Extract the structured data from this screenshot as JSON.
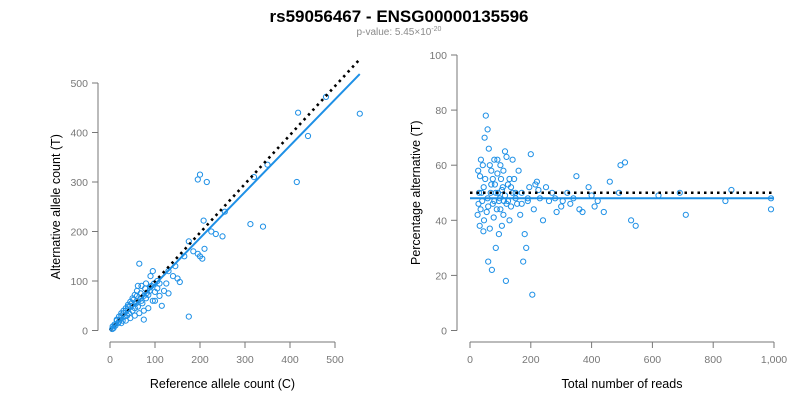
{
  "title": "rs59056467 - ENSG00000135596",
  "subtitle": {
    "prefix": "p-value: 5.45×10",
    "exponent": "-20"
  },
  "colors": {
    "points": "#1E90E6",
    "fit_line": "#1E90E6",
    "reference_line": "#000000",
    "axis": "#777777"
  },
  "chart_data": [
    {
      "type": "scatter",
      "xlabel": "Reference allele count (C)",
      "ylabel": "Alternative allele count (T)",
      "xlim": [
        0,
        560
      ],
      "ylim": [
        0,
        500
      ],
      "xticks": [
        0,
        100,
        200,
        300,
        400,
        500
      ],
      "yticks": [
        0,
        100,
        200,
        300,
        400,
        500
      ],
      "fit_line": {
        "from": [
          0,
          0
        ],
        "to": [
          555,
          518
        ],
        "style": "solid"
      },
      "reference_line": {
        "from": [
          0,
          0
        ],
        "to": [
          555,
          548
        ],
        "style": "dotted"
      },
      "points": [
        [
          555,
          438
        ],
        [
          480,
          472
        ],
        [
          440,
          393
        ],
        [
          418,
          440
        ],
        [
          415,
          300
        ],
        [
          350,
          335
        ],
        [
          340,
          210
        ],
        [
          320,
          310
        ],
        [
          312,
          215
        ],
        [
          255,
          240
        ],
        [
          250,
          190
        ],
        [
          215,
          300
        ],
        [
          208,
          222
        ],
        [
          200,
          315
        ],
        [
          195,
          305
        ],
        [
          210,
          165
        ],
        [
          205,
          145
        ],
        [
          200,
          150
        ],
        [
          195,
          155
        ],
        [
          235,
          195
        ],
        [
          225,
          200
        ],
        [
          185,
          160
        ],
        [
          175,
          180
        ],
        [
          165,
          150
        ],
        [
          175,
          28
        ],
        [
          155,
          98
        ],
        [
          150,
          105
        ],
        [
          145,
          130
        ],
        [
          140,
          110
        ],
        [
          130,
          120
        ],
        [
          125,
          95
        ],
        [
          115,
          50
        ],
        [
          110,
          70
        ],
        [
          105,
          85
        ],
        [
          100,
          78
        ],
        [
          95,
          60
        ],
        [
          90,
          88
        ],
        [
          85,
          72
        ],
        [
          80,
          65
        ],
        [
          78,
          85
        ],
        [
          75,
          22
        ],
        [
          72,
          55
        ],
        [
          70,
          60
        ],
        [
          68,
          75
        ],
        [
          65,
          135
        ],
        [
          62,
          48
        ],
        [
          60,
          70
        ],
        [
          58,
          55
        ],
        [
          55,
          45
        ],
        [
          52,
          62
        ],
        [
          50,
          40
        ],
        [
          48,
          55
        ],
        [
          45,
          50
        ],
        [
          42,
          35
        ],
        [
          40,
          48
        ],
        [
          38,
          30
        ],
        [
          35,
          40
        ],
        [
          32,
          28
        ],
        [
          30,
          35
        ],
        [
          28,
          20
        ],
        [
          25,
          30
        ],
        [
          22,
          22
        ],
        [
          20,
          18
        ],
        [
          18,
          15
        ],
        [
          15,
          20
        ],
        [
          12,
          10
        ],
        [
          10,
          12
        ],
        [
          8,
          5
        ],
        [
          6,
          8
        ],
        [
          5,
          3
        ],
        [
          90,
          110
        ],
        [
          95,
          120
        ],
        [
          105,
          100
        ],
        [
          80,
          95
        ],
        [
          70,
          90
        ],
        [
          60,
          80
        ],
        [
          55,
          72
        ],
        [
          50,
          65
        ],
        [
          45,
          58
        ],
        [
          40,
          52
        ],
        [
          35,
          45
        ],
        [
          30,
          40
        ],
        [
          25,
          35
        ],
        [
          20,
          28
        ],
        [
          15,
          22
        ],
        [
          120,
          80
        ],
        [
          110,
          95
        ],
        [
          100,
          60
        ],
        [
          85,
          45
        ],
        [
          75,
          40
        ],
        [
          65,
          35
        ],
        [
          55,
          30
        ],
        [
          45,
          25
        ],
        [
          35,
          20
        ],
        [
          25,
          15
        ],
        [
          130,
          75
        ],
        [
          62,
          90
        ],
        [
          68,
          65
        ],
        [
          75,
          70
        ],
        [
          82,
          76
        ],
        [
          88,
          80
        ],
        [
          92,
          90
        ],
        [
          98,
          95
        ]
      ]
    },
    {
      "type": "scatter",
      "xlabel": "Total number of reads",
      "ylabel": "Percentage alternative (T)",
      "xlim": [
        0,
        1000
      ],
      "ylim": [
        0,
        100
      ],
      "xticks": [
        0,
        200,
        400,
        600,
        800,
        1000
      ],
      "xtick_labels": [
        "0",
        "200",
        "400",
        "600",
        "800",
        "1,000"
      ],
      "yticks": [
        0,
        20,
        40,
        60,
        80,
        100
      ],
      "fit_line": {
        "from": [
          0,
          48
        ],
        "to": [
          1000,
          48
        ],
        "style": "solid"
      },
      "reference_line": {
        "from": [
          0,
          50
        ],
        "to": [
          1000,
          50
        ],
        "style": "dotted"
      },
      "points": [
        [
          990,
          44
        ],
        [
          990,
          48
        ],
        [
          860,
          51
        ],
        [
          840,
          47
        ],
        [
          710,
          42
        ],
        [
          690,
          50
        ],
        [
          620,
          49
        ],
        [
          545,
          38
        ],
        [
          530,
          40
        ],
        [
          510,
          61
        ],
        [
          495,
          60
        ],
        [
          490,
          50
        ],
        [
          460,
          54
        ],
        [
          440,
          43
        ],
        [
          420,
          47
        ],
        [
          410,
          45
        ],
        [
          400,
          49
        ],
        [
          390,
          52
        ],
        [
          370,
          43
        ],
        [
          360,
          44
        ],
        [
          350,
          56
        ],
        [
          340,
          48
        ],
        [
          330,
          46
        ],
        [
          320,
          50
        ],
        [
          305,
          47
        ],
        [
          300,
          45
        ],
        [
          285,
          43
        ],
        [
          270,
          50
        ],
        [
          260,
          47
        ],
        [
          240,
          40
        ],
        [
          230,
          48
        ],
        [
          225,
          51
        ],
        [
          220,
          54
        ],
        [
          215,
          53
        ],
        [
          210,
          44
        ],
        [
          205,
          13
        ],
        [
          200,
          64
        ],
        [
          195,
          52
        ],
        [
          190,
          47
        ],
        [
          185,
          30
        ],
        [
          180,
          35
        ],
        [
          175,
          25
        ],
        [
          170,
          50
        ],
        [
          165,
          42
        ],
        [
          160,
          58
        ],
        [
          155,
          46
        ],
        [
          150,
          48
        ],
        [
          145,
          55
        ],
        [
          140,
          50
        ],
        [
          135,
          45
        ],
        [
          130,
          40
        ],
        [
          125,
          53
        ],
        [
          120,
          63
        ],
        [
          118,
          18
        ],
        [
          115,
          65
        ],
        [
          112,
          47
        ],
        [
          110,
          42
        ],
        [
          108,
          52
        ],
        [
          105,
          38
        ],
        [
          102,
          55
        ],
        [
          100,
          60
        ],
        [
          98,
          48
        ],
        [
          95,
          35
        ],
        [
          92,
          50
        ],
        [
          90,
          57
        ],
        [
          88,
          44
        ],
        [
          85,
          30
        ],
        [
          82,
          53
        ],
        [
          80,
          62
        ],
        [
          78,
          41
        ],
        [
          75,
          46
        ],
        [
          72,
          22
        ],
        [
          70,
          58
        ],
        [
          68,
          50
        ],
        [
          65,
          37
        ],
        [
          62,
          66
        ],
        [
          60,
          25
        ],
        [
          58,
          48
        ],
        [
          55,
          43
        ],
        [
          52,
          78
        ],
        [
          50,
          55
        ],
        [
          48,
          70
        ],
        [
          46,
          40
        ],
        [
          45,
          52
        ],
        [
          44,
          36
        ],
        [
          42,
          60
        ],
        [
          40,
          47
        ],
        [
          38,
          50
        ],
        [
          36,
          62
        ],
        [
          35,
          44
        ],
        [
          33,
          56
        ],
        [
          32,
          38
        ],
        [
          30,
          50
        ],
        [
          28,
          46
        ],
        [
          27,
          58
        ],
        [
          25,
          42
        ],
        [
          140,
          62
        ],
        [
          130,
          55
        ],
        [
          120,
          46
        ],
        [
          110,
          58
        ],
        [
          100,
          44
        ],
        [
          90,
          62
        ],
        [
          80,
          47
        ],
        [
          70,
          53
        ],
        [
          60,
          45
        ],
        [
          58,
          73
        ],
        [
          65,
          60
        ],
        [
          75,
          55
        ],
        [
          85,
          50
        ],
        [
          95,
          47
        ],
        [
          105,
          51
        ],
        [
          115,
          49
        ],
        [
          125,
          47
        ],
        [
          135,
          52
        ],
        [
          150,
          50
        ],
        [
          170,
          46
        ],
        [
          190,
          48
        ],
        [
          250,
          52
        ],
        [
          280,
          48
        ]
      ]
    }
  ]
}
